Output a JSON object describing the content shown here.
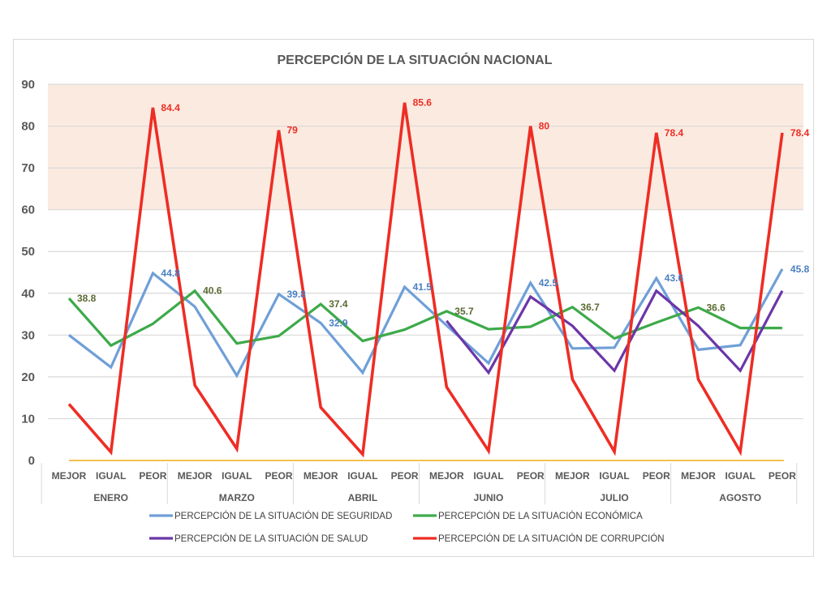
{
  "chart_data": {
    "type": "line",
    "title": "PERCEPCIÓN DE LA SITUACIÓN NACIONAL",
    "xlabel": "",
    "ylabel": "",
    "ylim": [
      0,
      90
    ],
    "yticks": [
      0,
      10,
      20,
      30,
      40,
      50,
      60,
      70,
      80,
      90
    ],
    "grid": true,
    "shaded_band": {
      "from": 60,
      "to": 90,
      "color": "#fbeae0"
    },
    "baseline_color": "#f2c14e",
    "groups": [
      "ENERO",
      "MARZO",
      "ABRIL",
      "JUNIO",
      "JULIO",
      "AGOSTO"
    ],
    "subcategories": [
      "MEJOR",
      "IGUAL",
      "PEOR"
    ],
    "categories": [
      "MEJOR",
      "IGUAL",
      "PEOR",
      "MEJOR",
      "IGUAL",
      "PEOR",
      "MEJOR",
      "IGUAL",
      "PEOR",
      "MEJOR",
      "IGUAL",
      "PEOR",
      "MEJOR",
      "IGUAL",
      "PEOR",
      "MEJOR",
      "IGUAL",
      "PEOR"
    ],
    "legend_position": "bottom",
    "series": [
      {
        "name": "PERCEPCIÓN DE LA SITUACIÓN DE SEGURIDAD",
        "color": "#6f9fd8",
        "label_color": "#4a7fc1",
        "values": [
          30,
          22.3,
          44.8,
          36.8,
          20.3,
          39.8,
          32.9,
          21,
          41.5,
          32.3,
          23.3,
          42.5,
          26.8,
          27,
          43.6,
          26.5,
          27.6,
          45.8
        ],
        "labels": {
          "2": "44.8",
          "5": "39.8",
          "6": "32.9",
          "8": "41.5",
          "11": "42.5",
          "14": "43.6",
          "17": "45.8"
        }
      },
      {
        "name": "PERCEPCIÓN DE LA SITUACIÓN ECONÓMICA",
        "color": "#3daa4a",
        "label_color": "#5a6a32",
        "values": [
          38.8,
          27.5,
          32.7,
          40.6,
          28,
          29.8,
          37.4,
          28.6,
          31.3,
          35.7,
          31.4,
          32,
          36.7,
          29.2,
          33,
          36.6,
          31.7,
          31.7
        ],
        "labels": {
          "0": "38.8",
          "3": "40.6",
          "6": "37.4",
          "9": "35.7",
          "12": "36.7",
          "15": "36.6"
        }
      },
      {
        "name": "PERCEPCIÓN DE LA SITUACIÓN DE SALUD",
        "color": "#6b36a8",
        "label_color": "#6b36a8",
        "values": [
          null,
          null,
          null,
          null,
          null,
          null,
          null,
          null,
          null,
          33.4,
          21,
          39.2,
          32.2,
          21.5,
          40.6,
          32.2,
          21.5,
          40.6
        ],
        "labels": {}
      },
      {
        "name": "PERCEPCIÓN DE LA SITUACIÓN DE CORRUPCIÓN",
        "color": "#ee2d24",
        "label_color": "#ee2d24",
        "values": [
          13.5,
          2,
          84.4,
          18,
          2.8,
          79,
          12.7,
          1.5,
          85.6,
          17.6,
          2.3,
          80,
          19.4,
          2.1,
          78.4,
          19.4,
          2.1,
          78.4
        ],
        "labels": {
          "2": "84.4",
          "5": "79",
          "8": "85.6",
          "11": "80",
          "14": "78.4",
          "17": "78.4"
        }
      }
    ]
  }
}
